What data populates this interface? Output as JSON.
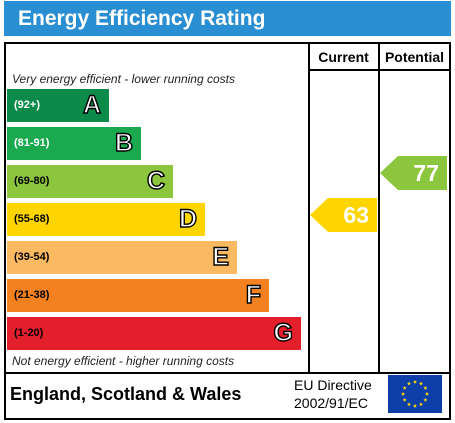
{
  "title": "Energy Efficiency Rating",
  "columns": {
    "current": "Current",
    "potential": "Potential"
  },
  "top_note": "Very energy efficient - lower running costs",
  "bottom_note": "Not energy efficient - higher running costs",
  "bands": [
    {
      "range": "(92+)",
      "letter": "A",
      "color": "#0c8a4a",
      "range_color": "#ffffff"
    },
    {
      "range": "(81-91)",
      "letter": "B",
      "color": "#1aa94f",
      "range_color": "#ffffff"
    },
    {
      "range": "(69-80)",
      "letter": "C",
      "color": "#8cc63f",
      "range_color": "#000000"
    },
    {
      "range": "(55-68)",
      "letter": "D",
      "color": "#ffd500",
      "range_color": "#000000"
    },
    {
      "range": "(39-54)",
      "letter": "E",
      "color": "#fbb962",
      "range_color": "#000000"
    },
    {
      "range": "(21-38)",
      "letter": "F",
      "color": "#f48120",
      "range_color": "#000000"
    },
    {
      "range": "(1-20)",
      "letter": "G",
      "color": "#e41f2c",
      "range_color": "#000000"
    }
  ],
  "current": {
    "value": "63",
    "band": "D",
    "color": "#ffd500"
  },
  "potential": {
    "value": "77",
    "band": "C",
    "color": "#8cc63f"
  },
  "footer": {
    "region": "England, Scotland & Wales",
    "directive_line1": "EU Directive",
    "directive_line2": "2002/91/EC"
  }
}
